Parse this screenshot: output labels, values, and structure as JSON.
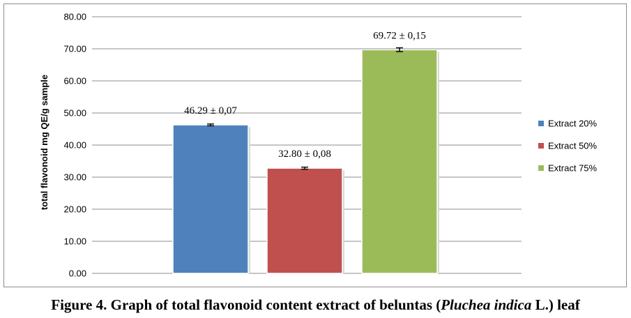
{
  "chart_data": {
    "type": "bar",
    "ylabel": "total flavonoid mg QE/g sample",
    "ylim": [
      0,
      80
    ],
    "yticks": [
      "0.00",
      "10.00",
      "20.00",
      "30.00",
      "40.00",
      "50.00",
      "60.00",
      "70.00",
      "80.00"
    ],
    "grid": "horizontal",
    "legend_position": "right",
    "series": [
      {
        "name": "Extract 20%",
        "value": 46.29,
        "error": 0.07,
        "label": "46.29 ± 0,07",
        "color": "#4f81bd"
      },
      {
        "name": "Extract 50%",
        "value": 32.8,
        "error": 0.08,
        "label": "32.80 ± 0,08",
        "color": "#c0504d"
      },
      {
        "name": "Extract 75%",
        "value": 69.72,
        "error": 0.15,
        "label": "69.72 ± 0,15",
        "color": "#9bbb59"
      }
    ]
  },
  "caption": {
    "part1": "Figure 4. Graph of total flavonoid content extract of beluntas (",
    "italic": "Pluchea indica",
    "part2": " L.) leaf"
  }
}
